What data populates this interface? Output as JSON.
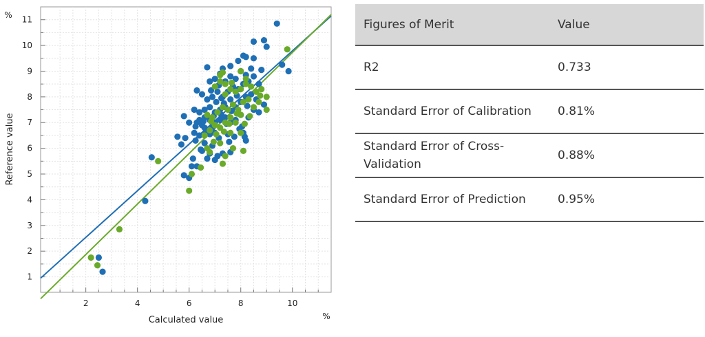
{
  "chart_data": {
    "type": "scatter",
    "title": "",
    "xlabel": "Calculated value",
    "ylabel": "Reference value",
    "x_unit": "%",
    "y_unit": "%",
    "xlim": [
      0.25,
      11.5
    ],
    "ylim": [
      0.4,
      11.5
    ],
    "x_ticks": [
      2,
      4,
      6,
      8,
      10
    ],
    "y_ticks": [
      1,
      2,
      3,
      4,
      5,
      6,
      7,
      8,
      9,
      10,
      11
    ],
    "grid": true,
    "legend": "none",
    "series": [
      {
        "color": "#1f6fb5",
        "points": [
          [
            2.5,
            1.75
          ],
          [
            2.65,
            1.2
          ],
          [
            4.3,
            3.95
          ],
          [
            4.55,
            5.65
          ],
          [
            5.8,
            4.95
          ],
          [
            6.0,
            4.85
          ],
          [
            6.1,
            5.3
          ],
          [
            6.3,
            5.3
          ],
          [
            5.55,
            6.45
          ],
          [
            5.7,
            6.15
          ],
          [
            5.85,
            6.4
          ],
          [
            6.15,
            5.6
          ],
          [
            6.25,
            6.3
          ],
          [
            6.4,
            6.5
          ],
          [
            6.5,
            6.9
          ],
          [
            6.5,
            5.9
          ],
          [
            6.6,
            6.2
          ],
          [
            6.7,
            5.6
          ],
          [
            6.8,
            5.8
          ],
          [
            6.9,
            6.1
          ],
          [
            7.0,
            5.55
          ],
          [
            7.1,
            5.7
          ],
          [
            7.3,
            5.8
          ],
          [
            7.6,
            5.85
          ],
          [
            8.2,
            6.3
          ],
          [
            8.1,
            6.6
          ],
          [
            7.5,
            6.55
          ],
          [
            7.0,
            6.6
          ],
          [
            6.8,
            6.55
          ],
          [
            6.6,
            6.8
          ],
          [
            6.3,
            7.0
          ],
          [
            6.0,
            7.0
          ],
          [
            6.2,
            6.6
          ],
          [
            6.4,
            7.1
          ],
          [
            6.6,
            7.2
          ],
          [
            6.8,
            7.1
          ],
          [
            7.0,
            7.0
          ],
          [
            7.2,
            7.1
          ],
          [
            7.4,
            7.2
          ],
          [
            7.6,
            7.0
          ],
          [
            7.8,
            7.1
          ],
          [
            8.0,
            7.3
          ],
          [
            8.3,
            7.2
          ],
          [
            8.5,
            7.5
          ],
          [
            8.7,
            7.4
          ],
          [
            8.9,
            7.7
          ],
          [
            8.6,
            7.9
          ],
          [
            8.4,
            8.1
          ],
          [
            8.2,
            8.0
          ],
          [
            8.0,
            7.8
          ],
          [
            7.8,
            7.6
          ],
          [
            7.6,
            7.9
          ],
          [
            7.4,
            7.6
          ],
          [
            7.2,
            7.5
          ],
          [
            7.0,
            7.4
          ],
          [
            6.8,
            7.6
          ],
          [
            6.6,
            7.5
          ],
          [
            6.4,
            7.4
          ],
          [
            6.2,
            7.5
          ],
          [
            5.8,
            7.25
          ],
          [
            6.5,
            8.1
          ],
          [
            6.7,
            7.9
          ],
          [
            6.9,
            8.0
          ],
          [
            7.1,
            8.2
          ],
          [
            7.3,
            8.0
          ],
          [
            7.5,
            8.2
          ],
          [
            7.7,
            8.4
          ],
          [
            7.9,
            8.3
          ],
          [
            8.1,
            8.5
          ],
          [
            8.3,
            8.6
          ],
          [
            8.5,
            8.8
          ],
          [
            8.7,
            8.5
          ],
          [
            6.3,
            8.25
          ],
          [
            6.8,
            8.6
          ],
          [
            7.0,
            8.7
          ],
          [
            7.2,
            8.9
          ],
          [
            7.4,
            8.6
          ],
          [
            7.6,
            8.8
          ],
          [
            7.8,
            8.7
          ],
          [
            8.0,
            9.0
          ],
          [
            8.2,
            8.85
          ],
          [
            8.4,
            9.1
          ],
          [
            8.8,
            9.05
          ],
          [
            6.7,
            9.15
          ],
          [
            7.3,
            9.1
          ],
          [
            7.6,
            9.2
          ],
          [
            7.9,
            9.4
          ],
          [
            8.1,
            9.6
          ],
          [
            8.2,
            9.55
          ],
          [
            8.5,
            9.5
          ],
          [
            8.5,
            10.15
          ],
          [
            8.9,
            10.2
          ],
          [
            9.0,
            9.95
          ],
          [
            9.4,
            10.85
          ],
          [
            9.6,
            9.25
          ],
          [
            9.85,
            9.0
          ],
          [
            7.05,
            7.8
          ],
          [
            7.25,
            7.3
          ],
          [
            6.9,
            6.8
          ],
          [
            7.45,
            6.95
          ],
          [
            7.65,
            7.45
          ],
          [
            8.05,
            6.85
          ],
          [
            6.55,
            7.05
          ],
          [
            7.15,
            6.4
          ],
          [
            7.75,
            6.45
          ],
          [
            6.95,
            7.25
          ],
          [
            7.35,
            7.75
          ],
          [
            8.25,
            7.65
          ],
          [
            6.45,
            5.95
          ],
          [
            7.85,
            8.05
          ],
          [
            7.15,
            8.45
          ],
          [
            7.55,
            6.25
          ],
          [
            6.85,
            8.25
          ],
          [
            8.15,
            6.45
          ],
          [
            6.25,
            6.85
          ],
          [
            7.95,
            6.75
          ],
          [
            6.65,
            6.6
          ],
          [
            7.25,
            7.95
          ]
        ]
      },
      {
        "color": "#6aaa2a",
        "points": [
          [
            2.2,
            1.75
          ],
          [
            2.45,
            1.45
          ],
          [
            3.3,
            2.85
          ],
          [
            4.8,
            5.5
          ],
          [
            6.0,
            4.35
          ],
          [
            6.1,
            5.0
          ],
          [
            6.45,
            5.25
          ],
          [
            6.8,
            5.85
          ],
          [
            7.3,
            5.4
          ],
          [
            7.4,
            5.7
          ],
          [
            7.7,
            6.0
          ],
          [
            8.1,
            5.9
          ],
          [
            6.6,
            6.5
          ],
          [
            6.8,
            6.7
          ],
          [
            7.0,
            6.9
          ],
          [
            7.2,
            6.8
          ],
          [
            7.4,
            7.0
          ],
          [
            7.6,
            7.2
          ],
          [
            7.8,
            7.0
          ],
          [
            8.0,
            7.3
          ],
          [
            6.7,
            7.3
          ],
          [
            6.9,
            7.2
          ],
          [
            7.1,
            7.4
          ],
          [
            7.3,
            7.6
          ],
          [
            7.5,
            7.5
          ],
          [
            7.7,
            7.7
          ],
          [
            7.9,
            7.5
          ],
          [
            8.1,
            7.8
          ],
          [
            8.3,
            7.9
          ],
          [
            8.5,
            7.6
          ],
          [
            8.7,
            7.8
          ],
          [
            9.0,
            7.5
          ],
          [
            7.4,
            8.1
          ],
          [
            7.6,
            8.3
          ],
          [
            7.8,
            8.2
          ],
          [
            8.0,
            8.3
          ],
          [
            8.2,
            8.5
          ],
          [
            8.4,
            8.4
          ],
          [
            8.6,
            8.2
          ],
          [
            8.8,
            8.3
          ],
          [
            9.0,
            8.0
          ],
          [
            7.0,
            8.4
          ],
          [
            7.2,
            8.6
          ],
          [
            7.4,
            8.5
          ],
          [
            7.3,
            8.95
          ],
          [
            7.2,
            8.85
          ],
          [
            8.0,
            9.0
          ],
          [
            8.2,
            8.7
          ],
          [
            9.8,
            9.85
          ],
          [
            7.6,
            6.6
          ],
          [
            7.2,
            6.2
          ],
          [
            6.7,
            6.0
          ],
          [
            8.0,
            6.6
          ],
          [
            7.35,
            6.65
          ],
          [
            7.85,
            7.35
          ],
          [
            8.15,
            6.95
          ],
          [
            6.95,
            6.25
          ],
          [
            7.55,
            6.95
          ],
          [
            8.35,
            7.25
          ],
          [
            8.75,
            8.05
          ],
          [
            7.65,
            8.55
          ],
          [
            6.85,
            7.05
          ],
          [
            7.05,
            6.55
          ]
        ]
      }
    ],
    "regression_lines": [
      {
        "color": "#1f6fb5",
        "x": [
          0.25,
          11.5
        ],
        "y": [
          0.95,
          11.15
        ]
      },
      {
        "color": "#6aaa2a",
        "x": [
          0.25,
          11.5
        ],
        "y": [
          0.15,
          11.2
        ]
      }
    ]
  },
  "table": {
    "headers": [
      "Figures of Merit",
      "Value"
    ],
    "rows": [
      {
        "label": "R2",
        "value": "0.733"
      },
      {
        "label": "Standard Error of Calibration",
        "value": "0.81%"
      },
      {
        "label": "Standard Error of Cross-Validation",
        "value": "0.88%"
      },
      {
        "label": "Standard Error of Prediction",
        "value": "0.95%"
      }
    ]
  }
}
